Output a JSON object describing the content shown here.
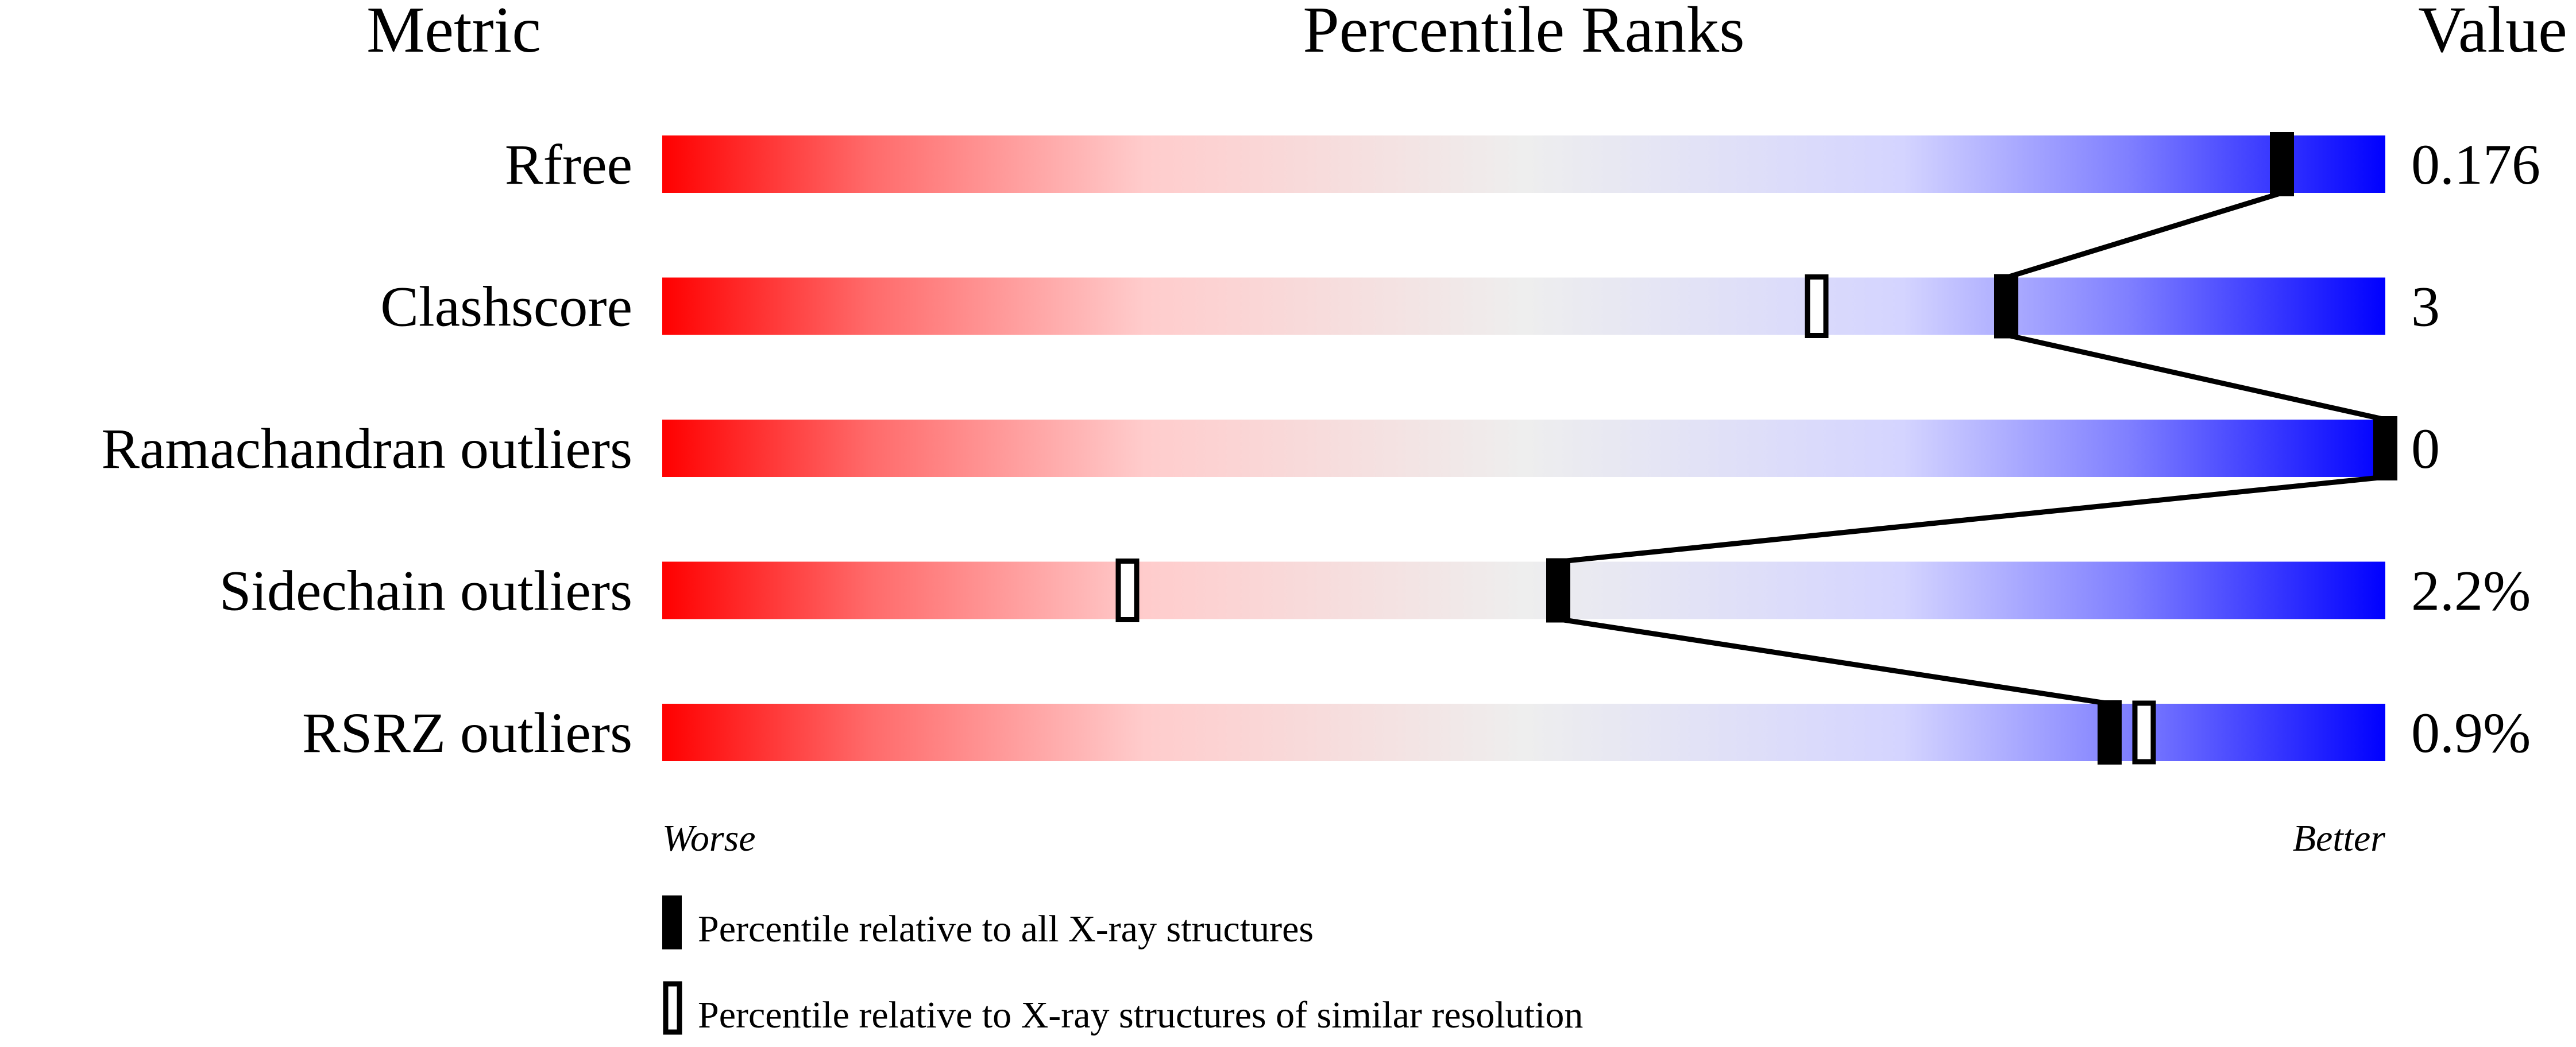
{
  "chart_data": {
    "type": "percentile-slider",
    "headers": {
      "metric": "Metric",
      "ranks": "Percentile Ranks",
      "value": "Value"
    },
    "xlim": [
      0,
      100
    ],
    "metrics": [
      {
        "name": "Rfree",
        "value": "0.176",
        "percentile_all": 94,
        "percentile_similar": null
      },
      {
        "name": "Clashscore",
        "value": "3",
        "percentile_all": 78,
        "percentile_similar": 67
      },
      {
        "name": "Ramachandran outliers",
        "value": "0",
        "percentile_all": 100,
        "percentile_similar": null
      },
      {
        "name": "Sidechain outliers",
        "value": "2.2%",
        "percentile_all": 52,
        "percentile_similar": 27
      },
      {
        "name": "RSRZ outliers",
        "value": "0.9%",
        "percentile_all": 84,
        "percentile_similar": 86
      }
    ],
    "axis": {
      "left": "Worse",
      "right": "Better"
    },
    "gradient_colors": [
      "#ff0000",
      "#eeeeee",
      "#0000ff"
    ],
    "legend": {
      "all": "Percentile relative to all X-ray structures",
      "similar": "Percentile relative to X-ray structures of similar resolution"
    }
  }
}
